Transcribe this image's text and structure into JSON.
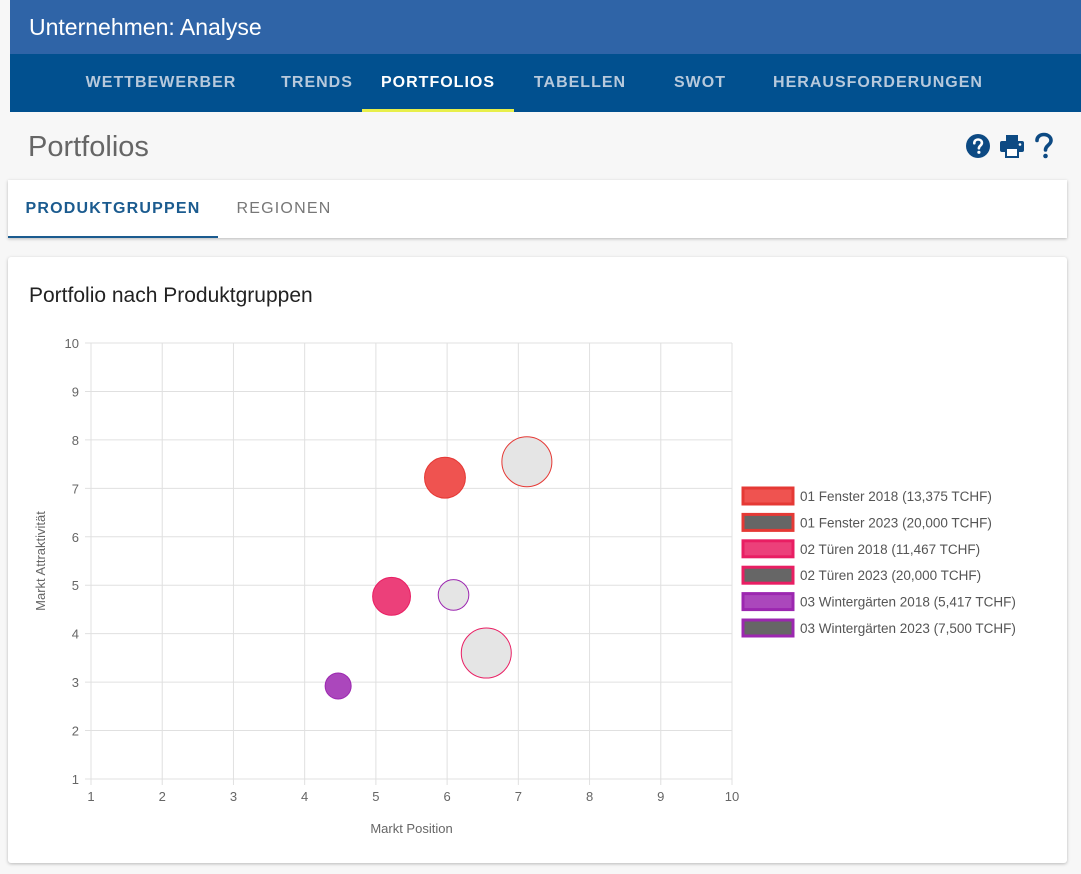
{
  "app": {
    "title": "Unternehmen: Analyse"
  },
  "nav": {
    "tabs": [
      {
        "label": "WETTBEWERBER"
      },
      {
        "label": "TRENDS"
      },
      {
        "label": "PORTFOLIOS",
        "active": true
      },
      {
        "label": "TABELLEN"
      },
      {
        "label": "SWOT"
      },
      {
        "label": "HERAUSFORDERUNGEN"
      }
    ]
  },
  "page": {
    "title": "Portfolios"
  },
  "toolbar": {
    "icons": [
      "help-circle-icon",
      "printer-icon",
      "question-mark-icon"
    ],
    "icon_color": "#0d4a83"
  },
  "subtabs": {
    "items": [
      {
        "label": "PRODUKTGRUPPEN",
        "active": true
      },
      {
        "label": "REGIONEN"
      }
    ]
  },
  "card": {
    "title": "Portfolio nach Produktgruppen"
  },
  "chart_data": {
    "type": "bubble",
    "title": "",
    "xlabel": "Markt Position",
    "ylabel": "Markt Attraktivität",
    "xlim": [
      1,
      10
    ],
    "ylim": [
      1,
      10
    ],
    "xticks": [
      "1",
      "2",
      "3",
      "4",
      "5",
      "6",
      "7",
      "8",
      "9",
      "10"
    ],
    "yticks": [
      "1",
      "2",
      "3",
      "4",
      "5",
      "6",
      "7",
      "8",
      "9",
      "10"
    ],
    "grid": true,
    "legend": "right",
    "series": [
      {
        "name": "01 Fenster 2018 (13,375 TCHF)",
        "x": 5.97,
        "y": 7.22,
        "size": 13375,
        "fill": "#ef5350",
        "stroke": "#e53935"
      },
      {
        "name": "01 Fenster 2023 (20,000 TCHF)",
        "x": 7.12,
        "y": 7.55,
        "size": 20000,
        "fill": "#e5e5e5",
        "stroke": "#e53935"
      },
      {
        "name": "02 Türen 2018 (11,467 TCHF)",
        "x": 5.22,
        "y": 4.77,
        "size": 11467,
        "fill": "#ec407a",
        "stroke": "#e91e63"
      },
      {
        "name": "02 Türen 2023 (20,000 TCHF)",
        "x": 6.55,
        "y": 3.6,
        "size": 20000,
        "fill": "#e5e5e5",
        "stroke": "#e91e63"
      },
      {
        "name": "03 Wintergärten 2018 (5,417 TCHF)",
        "x": 4.47,
        "y": 2.92,
        "size": 5417,
        "fill": "#ab47bc",
        "stroke": "#9c27b0"
      },
      {
        "name": "03 Wintergärten 2023 (7,500 TCHF)",
        "x": 6.09,
        "y": 4.8,
        "size": 7500,
        "fill": "#e5e5e5",
        "stroke": "#9c27b0"
      }
    ]
  }
}
